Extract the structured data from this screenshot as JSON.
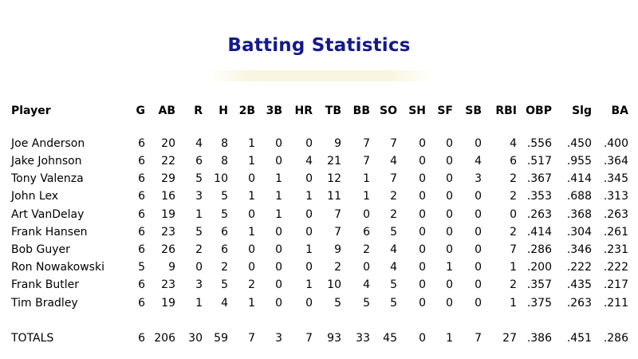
{
  "title": "Batting Statistics",
  "columns": [
    "Player",
    "G",
    "AB",
    "R",
    "H",
    "2B",
    "3B",
    "HR",
    "TB",
    "BB",
    "SO",
    "SH",
    "SF",
    "SB",
    "RBI",
    "OBP",
    "Slg",
    "BA"
  ],
  "players": [
    [
      "Joe Anderson",
      "6",
      "20",
      "4",
      "8",
      "1",
      "0",
      "0",
      "9",
      "7",
      "7",
      "0",
      "0",
      "0",
      "4",
      ".556",
      ".450",
      ".400"
    ],
    [
      "Jake Johnson",
      "6",
      "22",
      "6",
      "8",
      "1",
      "0",
      "4",
      "21",
      "7",
      "4",
      "0",
      "0",
      "4",
      "6",
      ".517",
      ".955",
      ".364"
    ],
    [
      "Tony Valenza",
      "6",
      "29",
      "5",
      "10",
      "0",
      "1",
      "0",
      "12",
      "1",
      "7",
      "0",
      "0",
      "3",
      "2",
      ".367",
      ".414",
      ".345"
    ],
    [
      "John Lex",
      "6",
      "16",
      "3",
      "5",
      "1",
      "1",
      "1",
      "11",
      "1",
      "2",
      "0",
      "0",
      "0",
      "2",
      ".353",
      ".688",
      ".313"
    ],
    [
      "Art VanDelay",
      "6",
      "19",
      "1",
      "5",
      "0",
      "1",
      "0",
      "7",
      "0",
      "2",
      "0",
      "0",
      "0",
      "0",
      ".263",
      ".368",
      ".263"
    ],
    [
      "Frank Hansen",
      "6",
      "23",
      "5",
      "6",
      "1",
      "0",
      "0",
      "7",
      "6",
      "5",
      "0",
      "0",
      "0",
      "2",
      ".414",
      ".304",
      ".261"
    ],
    [
      "Bob Guyer",
      "6",
      "26",
      "2",
      "6",
      "0",
      "0",
      "1",
      "9",
      "2",
      "4",
      "0",
      "0",
      "0",
      "7",
      ".286",
      ".346",
      ".231"
    ],
    [
      "Ron Nowakowski",
      "5",
      "9",
      "0",
      "2",
      "0",
      "0",
      "0",
      "2",
      "0",
      "4",
      "0",
      "1",
      "0",
      "1",
      ".200",
      ".222",
      ".222"
    ],
    [
      "Frank Butler",
      "6",
      "23",
      "3",
      "5",
      "2",
      "0",
      "1",
      "10",
      "4",
      "5",
      "0",
      "0",
      "0",
      "2",
      ".357",
      ".435",
      ".217"
    ],
    [
      "Tim Bradley",
      "6",
      "19",
      "1",
      "4",
      "1",
      "0",
      "0",
      "5",
      "5",
      "5",
      "0",
      "0",
      "0",
      "1",
      ".375",
      ".263",
      ".211"
    ]
  ],
  "totals": [
    "TOTALS",
    "6",
    "206",
    "30",
    "59",
    "7",
    "3",
    "7",
    "93",
    "33",
    "45",
    "0",
    "1",
    "7",
    "27",
    ".386",
    ".451",
    ".286"
  ]
}
